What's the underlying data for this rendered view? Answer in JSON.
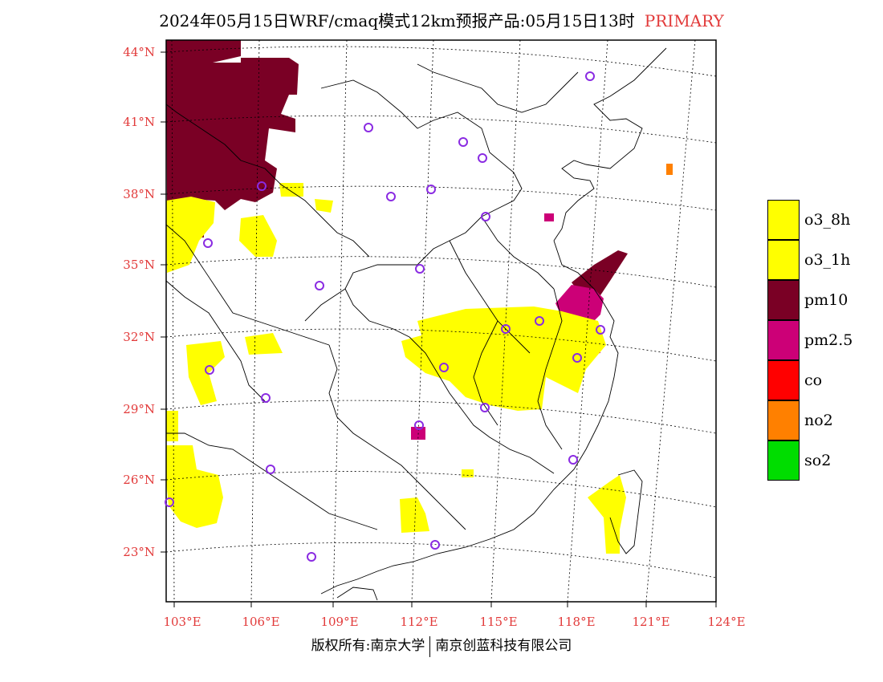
{
  "title": {
    "main": "2024年05月15日WRF/cmaq模式12km预报产品:05月15日13时",
    "tag": "PRIMARY"
  },
  "footer": {
    "left": "版权所有:南京大学",
    "right": "南京创蓝科技有限公司"
  },
  "colors": {
    "axis_label": "#e23a3a",
    "o3_8h": "#ffff00",
    "o3_1h": "#ffff00",
    "pm10": "#7a0025",
    "pm25": "#cc0077",
    "co": "#ff0000",
    "no2": "#ff8000",
    "so2": "#00dd00",
    "station": "#8a2be2"
  },
  "axes": {
    "lat_labels": [
      "44°N",
      "41°N",
      "38°N",
      "35°N",
      "32°N",
      "29°N",
      "26°N",
      "23°N"
    ],
    "lon_labels": [
      "103°E",
      "106°E",
      "109°E",
      "112°E",
      "115°E",
      "118°E",
      "121°E",
      "124°E"
    ]
  },
  "legend": [
    {
      "label": "o3_8h",
      "color": "#ffff00"
    },
    {
      "label": "o3_1h",
      "color": "#ffff00"
    },
    {
      "label": "pm10",
      "color": "#7a0025"
    },
    {
      "label": "pm2.5",
      "color": "#cc0077"
    },
    {
      "label": "co",
      "color": "#ff0000"
    },
    {
      "label": "no2",
      "color": "#ff8000"
    },
    {
      "label": "so2",
      "color": "#00dd00"
    }
  ]
}
